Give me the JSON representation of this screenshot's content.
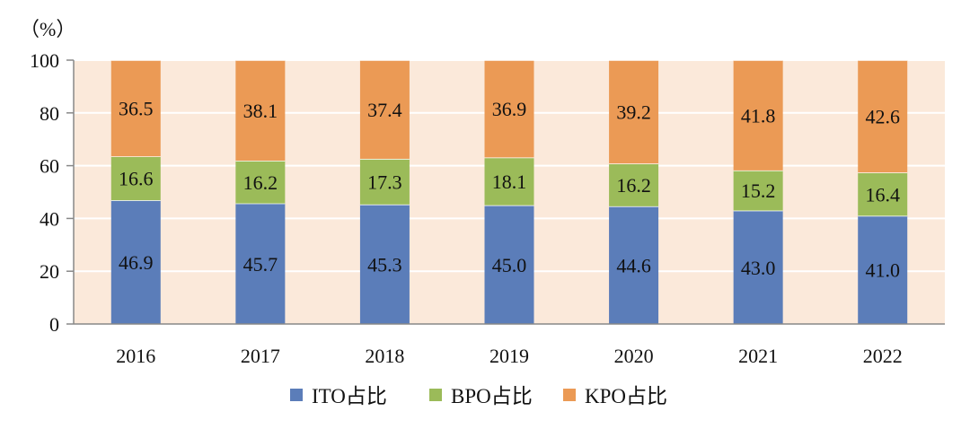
{
  "chart_data": {
    "type": "bar",
    "stacked": true,
    "unit_label": "（%）",
    "categories": [
      "2016",
      "2017",
      "2018",
      "2019",
      "2020",
      "2021",
      "2022"
    ],
    "series": [
      {
        "name": "ITO占比",
        "color": "#5B7DB9",
        "values": [
          46.9,
          45.7,
          45.3,
          45.0,
          44.6,
          43.0,
          41.0
        ]
      },
      {
        "name": "BPO占比",
        "color": "#9BBB59",
        "values": [
          16.6,
          16.2,
          17.3,
          18.1,
          16.2,
          15.2,
          16.4
        ]
      },
      {
        "name": "KPO占比",
        "color": "#EB9A55",
        "values": [
          36.5,
          38.1,
          37.4,
          36.9,
          39.2,
          41.8,
          42.6
        ]
      }
    ],
    "data_labels": [
      [
        "46.9",
        "45.7",
        "45.3",
        "45.0",
        "44.6",
        "43.0",
        "41.0"
      ],
      [
        "16.6",
        "16.2",
        "17.3",
        "18.1",
        "16.2",
        "15.2",
        "16.4"
      ],
      [
        "36.5",
        "38.1",
        "37.4",
        "36.9",
        "39.2",
        "41.8",
        "42.6"
      ]
    ],
    "ylim": [
      0,
      100
    ],
    "yticks": [
      "0",
      "20",
      "40",
      "60",
      "80",
      "100"
    ],
    "grid": true,
    "plot_background": "#FBE9DA",
    "legend_position": "bottom"
  }
}
